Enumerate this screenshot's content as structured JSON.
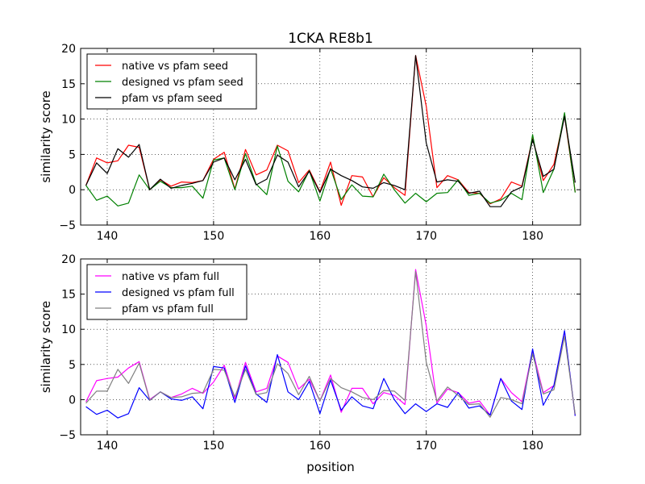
{
  "figure": {
    "title": "1CKA RE8b1",
    "xlabel": "position"
  },
  "chart_data": [
    {
      "type": "line",
      "title": "1CKA RE8b1",
      "xlabel": "",
      "ylabel": "similarity score",
      "xlim": [
        137.5,
        184.5
      ],
      "ylim": [
        -5,
        20
      ],
      "xticks": [
        140,
        150,
        160,
        170,
        180
      ],
      "yticks": [
        -5,
        0,
        5,
        10,
        15,
        20
      ],
      "grid": true,
      "legend_position": "top-left",
      "x": [
        138,
        139,
        140,
        141,
        142,
        143,
        144,
        145,
        146,
        147,
        148,
        149,
        150,
        151,
        152,
        153,
        154,
        155,
        156,
        157,
        158,
        159,
        160,
        161,
        162,
        163,
        164,
        165,
        166,
        167,
        168,
        169,
        170,
        171,
        172,
        173,
        174,
        175,
        176,
        177,
        178,
        179,
        180,
        181,
        182,
        183,
        184
      ],
      "series": [
        {
          "name": "native vs pfam seed",
          "color": "#ff0000",
          "values": [
            0.6,
            4.5,
            3.8,
            4.1,
            6.3,
            6.0,
            0.0,
            1.4,
            0.5,
            1.1,
            1.0,
            1.3,
            4.3,
            5.3,
            0.1,
            5.7,
            2.1,
            2.8,
            6.3,
            5.5,
            1.0,
            2.8,
            -0.3,
            3.9,
            -2.2,
            2.0,
            1.8,
            -1.0,
            1.7,
            0.3,
            -0.8,
            19.0,
            11.8,
            0.3,
            2.0,
            1.4,
            -0.4,
            -0.5,
            -2.0,
            -1.3,
            1.1,
            0.5,
            7.3,
            1.3,
            3.6,
            10.5,
            -0.3
          ]
        },
        {
          "name": "designed vs pfam seed",
          "color": "#008000",
          "values": [
            0.6,
            -1.5,
            -0.9,
            -2.3,
            -1.9,
            2.1,
            0.0,
            1.2,
            0.3,
            0.3,
            0.5,
            -1.2,
            4.2,
            4.5,
            0.0,
            5.1,
            0.8,
            -0.7,
            6.2,
            1.2,
            -0.3,
            2.7,
            -1.6,
            3.0,
            -1.4,
            0.7,
            -0.9,
            -1.0,
            2.2,
            0.0,
            -1.9,
            -0.5,
            -1.7,
            -0.5,
            -0.4,
            1.4,
            -0.8,
            -0.5,
            -1.9,
            -1.5,
            -0.5,
            -1.4,
            7.8,
            -0.4,
            2.9,
            10.9,
            -0.4
          ]
        },
        {
          "name": "pfam vs pfam seed",
          "color": "#000000",
          "values": [
            0.6,
            3.8,
            2.3,
            5.8,
            4.6,
            6.4,
            0.0,
            1.5,
            0.2,
            0.6,
            0.9,
            1.3,
            3.9,
            4.5,
            1.4,
            4.3,
            0.7,
            1.5,
            4.9,
            3.9,
            0.4,
            2.6,
            -0.4,
            2.9,
            2.0,
            1.3,
            0.4,
            0.2,
            1.0,
            0.6,
            0.0,
            19.0,
            6.6,
            1.1,
            1.4,
            1.2,
            -0.5,
            -0.2,
            -2.4,
            -2.4,
            -0.3,
            0.4,
            7.1,
            1.9,
            2.9,
            10.4,
            1.0
          ]
        }
      ]
    },
    {
      "type": "line",
      "title": "",
      "xlabel": "position",
      "ylabel": "similarity score",
      "xlim": [
        137.5,
        184.5
      ],
      "ylim": [
        -5,
        20
      ],
      "xticks": [
        140,
        150,
        160,
        170,
        180
      ],
      "yticks": [
        -5,
        0,
        5,
        10,
        15,
        20
      ],
      "grid": true,
      "legend_position": "top-left",
      "x": [
        138,
        139,
        140,
        141,
        142,
        143,
        144,
        145,
        146,
        147,
        148,
        149,
        150,
        151,
        152,
        153,
        154,
        155,
        156,
        157,
        158,
        159,
        160,
        161,
        162,
        163,
        164,
        165,
        166,
        167,
        168,
        169,
        170,
        171,
        172,
        173,
        174,
        175,
        176,
        177,
        178,
        179,
        180,
        181,
        182,
        183,
        184
      ],
      "series": [
        {
          "name": "native vs pfam full",
          "color": "#ff00ff",
          "values": [
            -0.3,
            2.7,
            3.0,
            3.2,
            4.5,
            5.4,
            0.0,
            1.1,
            0.3,
            0.8,
            1.6,
            0.9,
            2.5,
            4.9,
            0.1,
            5.3,
            1.1,
            1.6,
            6.2,
            5.3,
            1.5,
            2.9,
            -0.2,
            3.5,
            -1.8,
            1.6,
            1.6,
            -0.6,
            1.0,
            0.6,
            -0.7,
            18.5,
            10.5,
            -0.5,
            1.5,
            1.0,
            -0.5,
            -0.2,
            -2.2,
            3.0,
            1.0,
            -0.3,
            7.0,
            1.0,
            2.0,
            9.7,
            -2.3
          ]
        },
        {
          "name": "designed vs pfam full",
          "color": "#0000ff",
          "values": [
            -1.0,
            -2.1,
            -1.5,
            -2.6,
            -2.0,
            1.7,
            -0.1,
            1.1,
            0.1,
            -0.1,
            0.4,
            -1.3,
            4.7,
            4.5,
            -0.4,
            4.8,
            0.8,
            -0.4,
            6.4,
            1.1,
            0.0,
            2.6,
            -2.0,
            2.8,
            -1.5,
            0.4,
            -0.9,
            -1.3,
            3.0,
            0.0,
            -2.0,
            -0.6,
            -1.7,
            -0.6,
            -1.1,
            1.0,
            -1.2,
            -0.9,
            -2.2,
            3.0,
            -0.2,
            -1.4,
            7.2,
            -0.8,
            2.0,
            9.8,
            -2.3
          ]
        },
        {
          "name": "pfam vs pfam full",
          "color": "#808080",
          "values": [
            -0.5,
            1.2,
            1.2,
            4.3,
            2.3,
            5.2,
            -0.1,
            1.1,
            0.3,
            0.4,
            0.9,
            1.0,
            4.3,
            4.2,
            0.4,
            4.3,
            0.7,
            1.0,
            5.1,
            3.7,
            0.7,
            3.3,
            -0.2,
            3.0,
            1.7,
            1.1,
            0.3,
            0.0,
            1.3,
            1.2,
            -0.1,
            18.2,
            5.3,
            -0.2,
            1.8,
            0.6,
            -0.7,
            -0.6,
            -2.5,
            0.3,
            0.0,
            -0.6,
            6.5,
            0.8,
            1.4,
            9.0,
            -2.1
          ]
        }
      ]
    }
  ]
}
